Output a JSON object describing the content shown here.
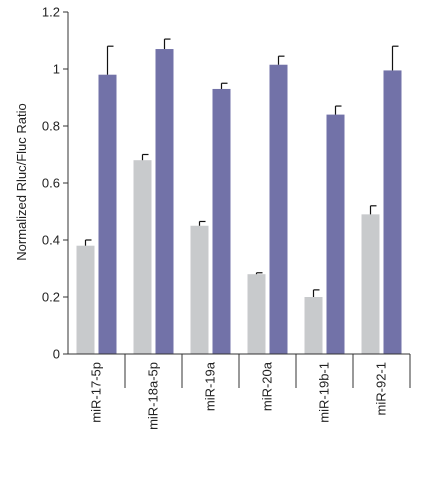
{
  "chart_data": {
    "type": "bar",
    "title": "",
    "xlabel": "",
    "ylabel": "Normalized Rluc/Fluc Ratio",
    "ylim": [
      0,
      1.2
    ],
    "yticks": [
      "0",
      "0.2",
      "0.4",
      "0.6",
      "0.8",
      "1",
      "1.2"
    ],
    "categories": [
      "miR-17-5p",
      "miR-18a-5p",
      "miR-19a",
      "miR-20a",
      "miR-19b-1",
      "miR-92-1"
    ],
    "series": [
      {
        "color": "#c8cacc",
        "values": [
          0.38,
          0.68,
          0.45,
          0.28,
          0.2,
          0.49
        ],
        "errors": [
          0.02,
          0.02,
          0.015,
          0.005,
          0.025,
          0.03
        ]
      },
      {
        "color": "#7272a8",
        "values": [
          0.98,
          1.07,
          0.93,
          1.015,
          0.84,
          0.995
        ],
        "errors": [
          0.1,
          0.035,
          0.02,
          0.03,
          0.03,
          0.085
        ]
      }
    ],
    "grid": false,
    "legend": "none"
  }
}
